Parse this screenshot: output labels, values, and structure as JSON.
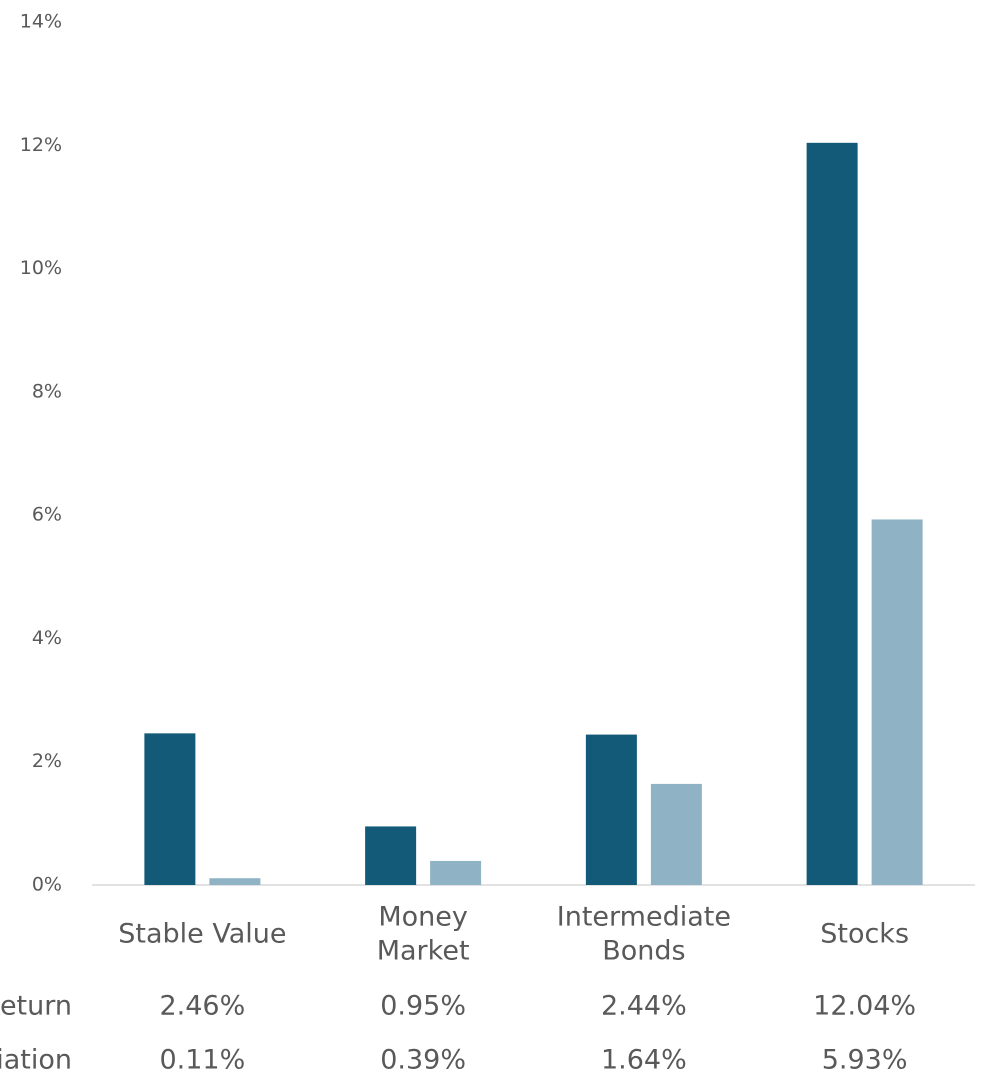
{
  "chart_data": {
    "type": "bar",
    "categories": [
      [
        "Stable Value"
      ],
      [
        "Money",
        "Market"
      ],
      [
        "Intermediate",
        "Bonds"
      ],
      [
        "Stocks"
      ]
    ],
    "series": [
      {
        "name": "Return",
        "color": "#135a78",
        "values": [
          2.46,
          0.95,
          2.44,
          12.04
        ],
        "value_labels": [
          "2.46%",
          "0.95%",
          "2.44%",
          "12.04%"
        ]
      },
      {
        "name": "Deviation",
        "color": "#8fb3c4",
        "values": [
          0.11,
          0.39,
          1.64,
          5.93
        ],
        "value_labels": [
          "0.11%",
          "0.39%",
          "1.64%",
          "5.93%"
        ]
      }
    ],
    "ylim": [
      0,
      14
    ],
    "yticks": [
      {
        "value": 0,
        "label": "0%"
      },
      {
        "value": 2,
        "label": "2%"
      },
      {
        "value": 4,
        "label": "4%"
      },
      {
        "value": 6,
        "label": "6%"
      },
      {
        "value": 8,
        "label": "8%"
      },
      {
        "value": 10,
        "label": "10%"
      },
      {
        "value": 12,
        "label": "12%"
      },
      {
        "value": 14,
        "label": "14%"
      }
    ],
    "grid": false
  }
}
